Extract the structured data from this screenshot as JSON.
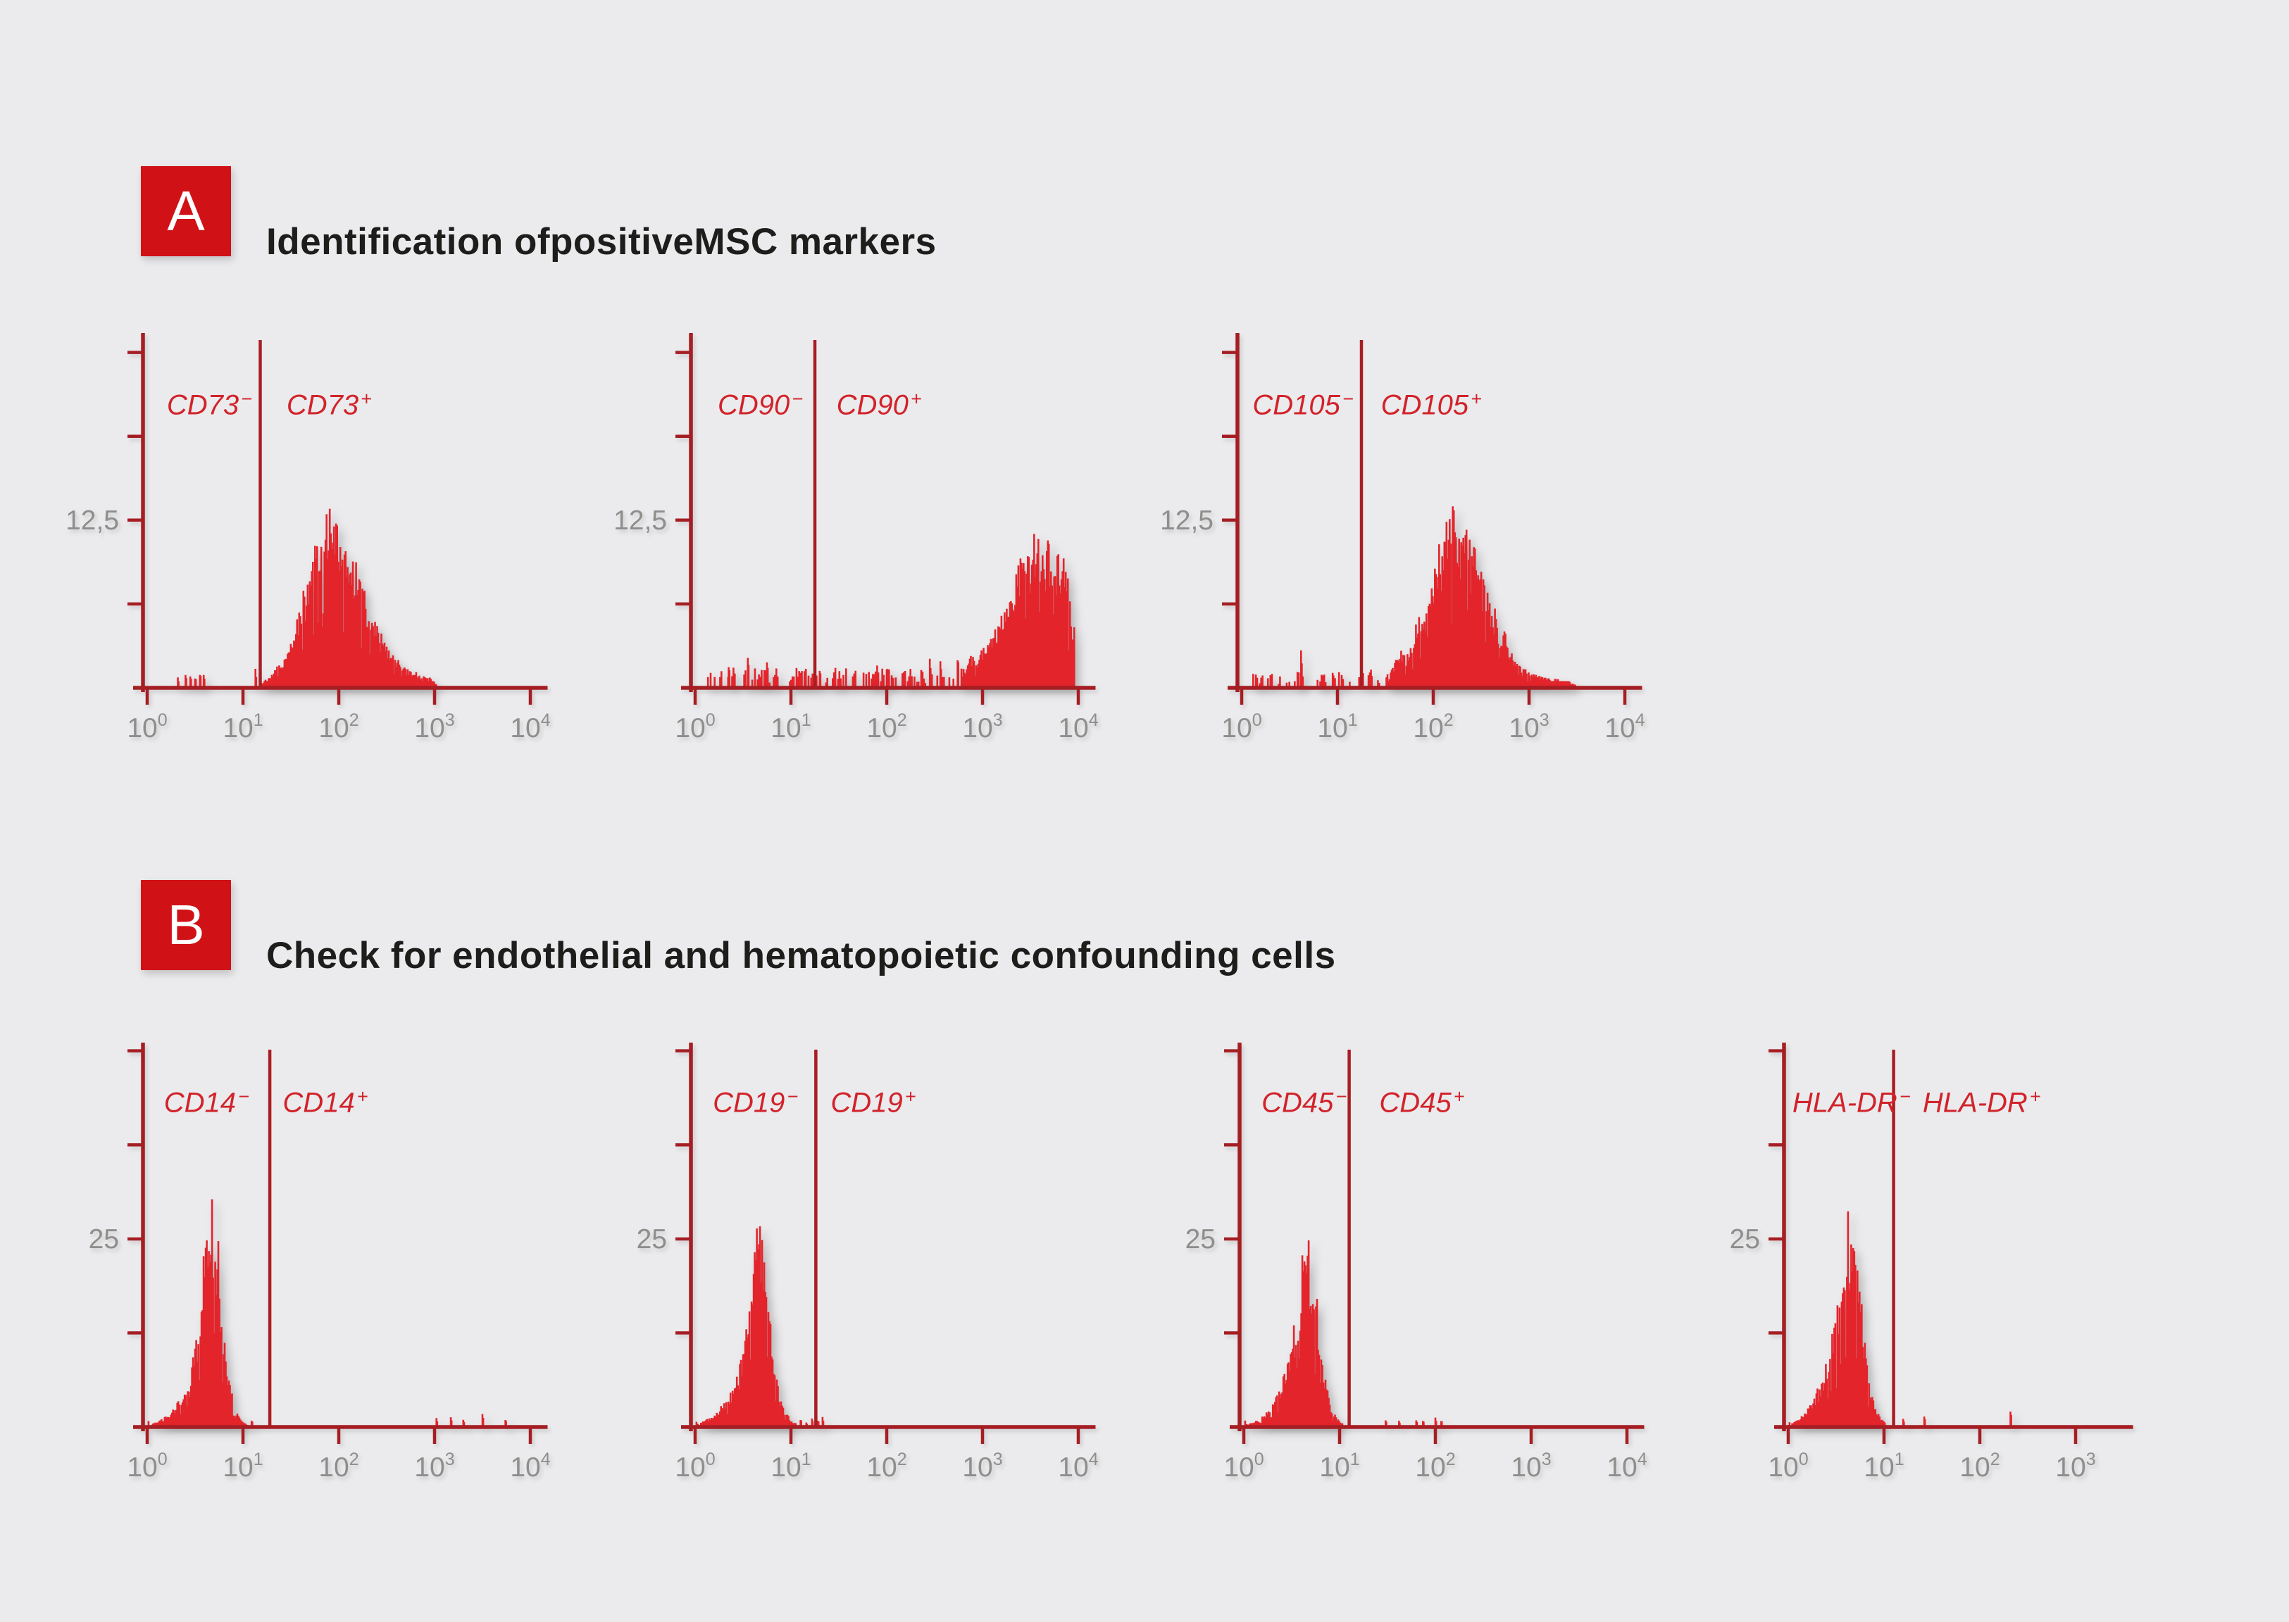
{
  "page": {
    "background": "#ebebed"
  },
  "colors": {
    "badge_red": "#d01217",
    "axis_red": "#a51e23",
    "gate_red": "#a81e23",
    "histogram_red": "#e3242b",
    "marker_label_red": "#d2232a",
    "tick_label_gray": "#8e8e8c",
    "title_text": "#1d1d1b"
  },
  "sections": [
    {
      "id": "A",
      "badge": "A",
      "title_segments": [
        {
          "text": "Identification of ",
          "bold": false
        },
        {
          "text": "positive",
          "bold": true
        },
        {
          "text": " MSC markers",
          "bold": false
        }
      ]
    },
    {
      "id": "B",
      "badge": "B",
      "title_segments": [
        {
          "text": "Check for endothelial and hematopoietic confounding cells",
          "bold": false
        }
      ]
    }
  ],
  "chart_data": [
    {
      "id": "cd73",
      "type": "histogram",
      "section": "A",
      "marker": "CD73",
      "neg_label": {
        "base": "CD73",
        "sign": "−"
      },
      "pos_label": {
        "base": "CD73",
        "sign": "+"
      },
      "x_scale": "log10",
      "x_tick_exponents": [
        0,
        1,
        2,
        3,
        4
      ],
      "x_axis_end_log": 4.18,
      "y_tick_values": [
        6.25,
        12.5,
        18.75,
        25
      ],
      "y_label": {
        "value": 12.5,
        "text": "12,5"
      },
      "ylim": [
        0,
        26.5
      ],
      "gate_log": 1.18,
      "neg_label_log": 0.65,
      "pos_label_log": 1.9,
      "label_y_frac": 0.205,
      "envelope": [
        [
          1.18,
          0.3
        ],
        [
          1.28,
          0.9
        ],
        [
          1.35,
          1.6
        ],
        [
          1.45,
          2.6
        ],
        [
          1.52,
          4.0
        ],
        [
          1.6,
          6.2
        ],
        [
          1.68,
          8.2
        ],
        [
          1.76,
          10.2
        ],
        [
          1.84,
          12.6
        ],
        [
          1.9,
          13.8
        ],
        [
          1.96,
          12.6
        ],
        [
          2.03,
          13.2
        ],
        [
          2.1,
          11.4
        ],
        [
          2.18,
          9.4
        ],
        [
          2.26,
          7.8
        ],
        [
          2.34,
          6.0
        ],
        [
          2.42,
          4.5
        ],
        [
          2.52,
          3.1
        ],
        [
          2.62,
          2.1
        ],
        [
          2.72,
          1.4
        ],
        [
          2.82,
          1.0
        ],
        [
          2.95,
          0.8
        ],
        [
          3.02,
          0.3
        ]
      ],
      "noise_band": null,
      "spikes": [
        [
          0.32,
          0.8
        ],
        [
          0.4,
          1.0
        ],
        [
          0.45,
          0.9
        ],
        [
          0.5,
          0.8
        ],
        [
          0.55,
          1.0
        ],
        [
          0.59,
          0.9
        ],
        [
          1.13,
          1.3
        ]
      ]
    },
    {
      "id": "cd90",
      "type": "histogram",
      "section": "A",
      "marker": "CD90",
      "neg_label": {
        "base": "CD90",
        "sign": "−"
      },
      "pos_label": {
        "base": "CD90",
        "sign": "+"
      },
      "x_scale": "log10",
      "x_tick_exponents": [
        0,
        1,
        2,
        3,
        4
      ],
      "x_axis_end_log": 4.18,
      "y_tick_values": [
        6.25,
        12.5,
        18.75,
        25
      ],
      "y_label": {
        "value": 12.5,
        "text": "12,5"
      },
      "ylim": [
        0,
        26.5
      ],
      "gate_log": 1.25,
      "neg_label_log": 0.68,
      "pos_label_log": 1.92,
      "label_y_frac": 0.205,
      "envelope": [
        [
          2.78,
          1.2
        ],
        [
          2.88,
          2.6
        ],
        [
          2.94,
          2.0
        ],
        [
          3.02,
          3.2
        ],
        [
          3.1,
          4.4
        ],
        [
          3.18,
          5.6
        ],
        [
          3.26,
          7.4
        ],
        [
          3.34,
          9.0
        ],
        [
          3.42,
          10.4
        ],
        [
          3.5,
          11.4
        ],
        [
          3.58,
          12.2
        ],
        [
          3.64,
          11.0
        ],
        [
          3.7,
          11.8
        ],
        [
          3.76,
          11.2
        ],
        [
          3.82,
          10.4
        ],
        [
          3.88,
          9.2
        ],
        [
          3.93,
          6.0
        ],
        [
          3.96,
          4.5
        ]
      ],
      "noise_band": {
        "from": 0.12,
        "to": 2.92,
        "height": 1.0,
        "density": 0.5
      },
      "spikes": [
        [
          0.35,
          1.5
        ],
        [
          0.55,
          2.2
        ],
        [
          0.75,
          2.0
        ],
        [
          1.3,
          1.3
        ],
        [
          1.9,
          1.8
        ],
        [
          2.0,
          1.6
        ],
        [
          2.45,
          2.0
        ],
        [
          2.56,
          1.8
        ],
        [
          2.74,
          2.3
        ]
      ]
    },
    {
      "id": "cd105",
      "type": "histogram",
      "section": "A",
      "marker": "CD105",
      "neg_label": {
        "base": "CD105",
        "sign": "−"
      },
      "pos_label": {
        "base": "CD105",
        "sign": "+"
      },
      "x_scale": "log10",
      "x_tick_exponents": [
        0,
        1,
        2,
        3,
        4
      ],
      "x_axis_end_log": 4.18,
      "y_tick_values": [
        6.25,
        12.5,
        18.75,
        25
      ],
      "y_label": {
        "value": 12.5,
        "text": "12,5"
      },
      "ylim": [
        0,
        26.5
      ],
      "gate_log": 1.25,
      "neg_label_log": 0.64,
      "pos_label_log": 1.98,
      "label_y_frac": 0.205,
      "envelope": [
        [
          1.5,
          0.8
        ],
        [
          1.58,
          1.8
        ],
        [
          1.65,
          3.0
        ],
        [
          1.72,
          2.3
        ],
        [
          1.8,
          4.6
        ],
        [
          1.87,
          6.4
        ],
        [
          1.93,
          5.6
        ],
        [
          2.0,
          8.2
        ],
        [
          2.06,
          10.6
        ],
        [
          2.12,
          12.8
        ],
        [
          2.17,
          15.2
        ],
        [
          2.22,
          13.4
        ],
        [
          2.28,
          12.0
        ],
        [
          2.34,
          13.0
        ],
        [
          2.4,
          10.6
        ],
        [
          2.46,
          11.4
        ],
        [
          2.52,
          8.6
        ],
        [
          2.6,
          6.6
        ],
        [
          2.68,
          5.0
        ],
        [
          2.76,
          3.6
        ],
        [
          2.84,
          2.5
        ],
        [
          2.92,
          1.8
        ],
        [
          3.02,
          1.2
        ],
        [
          3.12,
          0.9
        ],
        [
          3.25,
          0.7
        ],
        [
          3.42,
          0.5
        ],
        [
          3.5,
          0.2
        ]
      ],
      "noise_band": {
        "from": 0.12,
        "to": 1.45,
        "height": 0.8,
        "density": 0.32
      },
      "spikes": [
        [
          0.3,
          1.0
        ],
        [
          0.62,
          2.6
        ],
        [
          0.95,
          1.2
        ],
        [
          1.35,
          1.4
        ]
      ]
    },
    {
      "id": "cd14",
      "type": "histogram",
      "section": "B",
      "marker": "CD14",
      "neg_label": {
        "base": "CD14",
        "sign": "−"
      },
      "pos_label": {
        "base": "CD14",
        "sign": "+"
      },
      "x_scale": "log10",
      "x_tick_exponents": [
        0,
        1,
        2,
        3,
        4
      ],
      "x_axis_end_log": 4.18,
      "y_tick_values": [
        12.5,
        25,
        37.5,
        50
      ],
      "y_label": {
        "value": 25,
        "text": "25"
      },
      "ylim": [
        0,
        51
      ],
      "gate_log": 1.28,
      "neg_label_log": 0.62,
      "pos_label_log": 1.86,
      "label_y_frac": 0.155,
      "envelope": [
        [
          0.05,
          0.4
        ],
        [
          0.12,
          0.8
        ],
        [
          0.2,
          1.5
        ],
        [
          0.28,
          2.6
        ],
        [
          0.35,
          4.2
        ],
        [
          0.42,
          6.6
        ],
        [
          0.47,
          9.2
        ],
        [
          0.52,
          13.0
        ],
        [
          0.56,
          18.0
        ],
        [
          0.6,
          24.5
        ],
        [
          0.63,
          30.5
        ],
        [
          0.66,
          27.5
        ],
        [
          0.69,
          29.0
        ],
        [
          0.72,
          25.5
        ],
        [
          0.75,
          21.5
        ],
        [
          0.79,
          15.0
        ],
        [
          0.83,
          9.5
        ],
        [
          0.87,
          5.5
        ],
        [
          0.91,
          3.0
        ],
        [
          0.95,
          1.6
        ],
        [
          1.0,
          0.7
        ],
        [
          1.05,
          0.3
        ]
      ],
      "noise_band": {
        "from": 0.0,
        "to": 0.32,
        "height": 0.7,
        "density": 0.65
      },
      "spikes": [
        [
          1.09,
          0.8
        ],
        [
          3.02,
          1.2
        ],
        [
          3.17,
          1.4
        ],
        [
          3.3,
          1.0
        ],
        [
          3.5,
          1.6
        ],
        [
          3.74,
          1.1
        ]
      ]
    },
    {
      "id": "cd19",
      "type": "histogram",
      "section": "B",
      "marker": "CD19",
      "neg_label": {
        "base": "CD19",
        "sign": "−"
      },
      "pos_label": {
        "base": "CD19",
        "sign": "+"
      },
      "x_scale": "log10",
      "x_tick_exponents": [
        0,
        1,
        2,
        3,
        4
      ],
      "x_axis_end_log": 4.18,
      "y_tick_values": [
        12.5,
        25,
        37.5,
        50
      ],
      "y_label": {
        "value": 25,
        "text": "25"
      },
      "ylim": [
        0,
        51
      ],
      "gate_log": 1.26,
      "neg_label_log": 0.63,
      "pos_label_log": 1.86,
      "label_y_frac": 0.155,
      "envelope": [
        [
          0.05,
          0.5
        ],
        [
          0.14,
          1.2
        ],
        [
          0.24,
          2.2
        ],
        [
          0.32,
          3.6
        ],
        [
          0.4,
          5.6
        ],
        [
          0.46,
          8.2
        ],
        [
          0.52,
          12.0
        ],
        [
          0.57,
          17.0
        ],
        [
          0.61,
          22.5
        ],
        [
          0.64,
          27.0
        ],
        [
          0.67,
          24.5
        ],
        [
          0.7,
          25.5
        ],
        [
          0.74,
          21.0
        ],
        [
          0.78,
          15.5
        ],
        [
          0.82,
          10.0
        ],
        [
          0.86,
          6.0
        ],
        [
          0.9,
          3.5
        ],
        [
          0.95,
          2.0
        ],
        [
          1.0,
          1.0
        ],
        [
          1.06,
          0.5
        ]
      ],
      "noise_band": {
        "from": 0.0,
        "to": 0.35,
        "height": 0.6,
        "density": 0.6
      },
      "spikes": [
        [
          1.1,
          0.9
        ],
        [
          1.16,
          0.7
        ],
        [
          1.22,
          1.1
        ],
        [
          1.28,
          0.8
        ],
        [
          1.33,
          1.3
        ]
      ]
    },
    {
      "id": "cd45",
      "type": "histogram",
      "section": "B",
      "marker": "CD45",
      "neg_label": {
        "base": "CD45",
        "sign": "−"
      },
      "pos_label": {
        "base": "CD45",
        "sign": "+"
      },
      "x_scale": "log10",
      "x_tick_exponents": [
        0,
        1,
        2,
        3,
        4
      ],
      "x_axis_end_log": 4.18,
      "y_tick_values": [
        12.5,
        25,
        37.5,
        50
      ],
      "y_label": {
        "value": 25,
        "text": "25"
      },
      "ylim": [
        0,
        51
      ],
      "gate_log": 1.1,
      "neg_label_log": 0.63,
      "pos_label_log": 1.86,
      "label_y_frac": 0.155,
      "envelope": [
        [
          0.05,
          0.4
        ],
        [
          0.13,
          0.9
        ],
        [
          0.22,
          1.8
        ],
        [
          0.3,
          3.2
        ],
        [
          0.37,
          5.2
        ],
        [
          0.43,
          7.8
        ],
        [
          0.49,
          11.2
        ],
        [
          0.54,
          15.2
        ],
        [
          0.58,
          19.5
        ],
        [
          0.62,
          24.0
        ],
        [
          0.65,
          26.8
        ],
        [
          0.68,
          24.8
        ],
        [
          0.71,
          22.8
        ],
        [
          0.75,
          18.5
        ],
        [
          0.79,
          13.0
        ],
        [
          0.83,
          8.0
        ],
        [
          0.88,
          4.5
        ],
        [
          0.92,
          2.5
        ],
        [
          0.97,
          1.2
        ],
        [
          1.03,
          0.5
        ]
      ],
      "noise_band": {
        "from": 0.0,
        "to": 0.3,
        "height": 0.6,
        "density": 0.6
      },
      "spikes": [
        [
          1.48,
          0.8
        ],
        [
          1.62,
          0.9
        ],
        [
          1.8,
          1.0
        ],
        [
          1.87,
          0.9
        ],
        [
          2.0,
          1.1
        ],
        [
          2.06,
          0.9
        ]
      ]
    },
    {
      "id": "hladr",
      "type": "histogram",
      "section": "B",
      "marker": "HLA-DR",
      "neg_label": {
        "base": "HLA-DR",
        "sign": "−"
      },
      "pos_label": {
        "base": "HLA-DR",
        "sign": "+"
      },
      "x_scale": "log10",
      "x_tick_exponents": [
        0,
        1,
        2,
        3
      ],
      "x_axis_end_log": 3.6,
      "y_tick_values": [
        12.5,
        25,
        37.5,
        50
      ],
      "y_label": {
        "value": 25,
        "text": "25"
      },
      "ylim": [
        0,
        51
      ],
      "gate_log": 1.1,
      "neg_label_log": 0.66,
      "pos_label_log": 2.02,
      "label_y_frac": 0.155,
      "envelope": [
        [
          0.03,
          0.5
        ],
        [
          0.1,
          1.0
        ],
        [
          0.18,
          2.0
        ],
        [
          0.26,
          3.6
        ],
        [
          0.33,
          5.6
        ],
        [
          0.39,
          8.2
        ],
        [
          0.45,
          12.0
        ],
        [
          0.5,
          16.0
        ],
        [
          0.55,
          21.5
        ],
        [
          0.59,
          26.5
        ],
        [
          0.62,
          31.0
        ],
        [
          0.65,
          27.0
        ],
        [
          0.68,
          28.5
        ],
        [
          0.71,
          24.0
        ],
        [
          0.75,
          19.0
        ],
        [
          0.79,
          13.5
        ],
        [
          0.83,
          8.5
        ],
        [
          0.87,
          5.0
        ],
        [
          0.91,
          2.8
        ],
        [
          0.96,
          1.4
        ],
        [
          1.02,
          0.6
        ]
      ],
      "noise_band": {
        "from": 0.0,
        "to": 0.3,
        "height": 0.6,
        "density": 0.6
      },
      "spikes": [
        [
          1.2,
          1.0
        ],
        [
          1.42,
          1.2
        ],
        [
          2.32,
          1.8
        ]
      ]
    }
  ]
}
